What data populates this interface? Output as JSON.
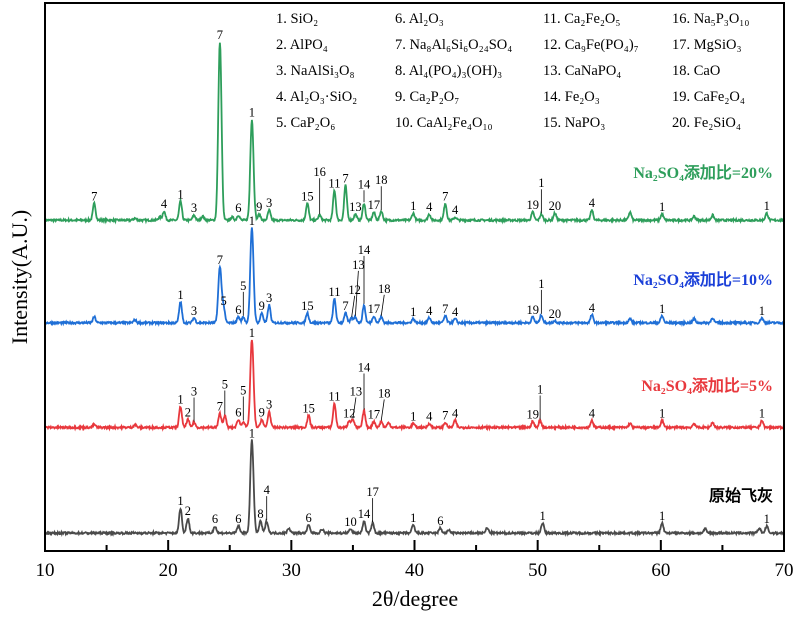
{
  "chart_data": {
    "type": "line",
    "xlabel": "2θ/degree",
    "ylabel": "Intensity(A.U.)",
    "xlim": [
      10,
      70
    ],
    "ylim": [
      0,
      1100
    ],
    "xticks": [
      10,
      20,
      30,
      40,
      50,
      60,
      70
    ],
    "grid": false,
    "y_ticks_shown": false,
    "legend": {
      "placement": "top-right",
      "columns": [
        [
          "1. SiO₂",
          "2. AlPO₄",
          "3. NaAlSi₃O₈",
          "4. Al₂O₃·SiO₂",
          "5. CaP₂O₆"
        ],
        [
          "6. Al₂O₃",
          "7. Na₈Al₆Si₆O₂₄SO₄",
          "8. Al₄(PO₄)₃(OH)₃",
          "9. Ca₂P₂O₇",
          "10. CaAl₂Fe₄O₁₀"
        ],
        [
          "11. Ca₂Fe₂O₅",
          "12. Ca₉Fe(PO₄)₇",
          "13. CaNaPO₄",
          "14. Fe₂O₃",
          "15. NaPO₃"
        ],
        [
          "16. Na₅P₃O₁₀",
          "17. MgSiO₃",
          "18. CaO",
          "19. CaFe₂O₄",
          "20. Fe₂SiO₄"
        ]
      ]
    },
    "series": [
      {
        "name": "Na₂SO₄添加比=20%",
        "color": "#2e9e5b",
        "offset": 664,
        "peaks": [
          [
            14.0,
            34,
            "7"
          ],
          [
            17.3,
            4,
            ""
          ],
          [
            19.3,
            6,
            ""
          ],
          [
            19.66,
            18,
            "4"
          ],
          [
            21.0,
            38,
            "1"
          ],
          [
            22.1,
            10,
            "3"
          ],
          [
            22.8,
            8,
            ""
          ],
          [
            24.2,
            358,
            "7"
          ],
          [
            25.2,
            6,
            ""
          ],
          [
            25.7,
            10,
            "6"
          ],
          [
            26.8,
            202,
            "1"
          ],
          [
            27.4,
            12,
            "9"
          ],
          [
            28.2,
            20,
            "3"
          ],
          [
            31.3,
            34,
            "15"
          ],
          [
            32.3,
            10,
            "16"
          ],
          [
            33.5,
            60,
            "11"
          ],
          [
            34.4,
            70,
            "7"
          ],
          [
            35.2,
            12,
            "13"
          ],
          [
            35.9,
            34,
            "14"
          ],
          [
            36.7,
            16,
            "17"
          ],
          [
            37.3,
            18,
            "18"
          ],
          [
            39.9,
            14,
            "1"
          ],
          [
            41.2,
            12,
            "4"
          ],
          [
            42.5,
            34,
            "7"
          ],
          [
            43.3,
            6,
            "4"
          ],
          [
            49.6,
            16,
            "19"
          ],
          [
            50.3,
            12,
            "1"
          ],
          [
            51.4,
            14,
            "20"
          ],
          [
            54.4,
            20,
            "4"
          ],
          [
            57.5,
            16,
            ""
          ],
          [
            60.1,
            12,
            "1"
          ],
          [
            62.7,
            8,
            ""
          ],
          [
            64.2,
            10,
            ""
          ],
          [
            68.6,
            14,
            "1"
          ]
        ]
      },
      {
        "name": "Na₂SO₄添加比=10%",
        "color": "#1f6fd6",
        "label_color": "#1a3fd8",
        "offset": 458,
        "peaks": [
          [
            14.0,
            12,
            ""
          ],
          [
            17.3,
            6,
            ""
          ],
          [
            21.0,
            42,
            "1"
          ],
          [
            22.1,
            10,
            "3"
          ],
          [
            24.2,
            112,
            "7"
          ],
          [
            24.5,
            30,
            "5"
          ],
          [
            25.7,
            12,
            "6"
          ],
          [
            26.1,
            12,
            "5"
          ],
          [
            26.8,
            190,
            "1"
          ],
          [
            27.6,
            20,
            "9"
          ],
          [
            28.2,
            36,
            "3"
          ],
          [
            31.3,
            20,
            "15"
          ],
          [
            33.5,
            48,
            "11"
          ],
          [
            34.4,
            20,
            "7"
          ],
          [
            34.9,
            10,
            "12",
            true
          ],
          [
            35.2,
            12,
            "13",
            true
          ],
          [
            35.9,
            36,
            "14"
          ],
          [
            36.7,
            14,
            "17"
          ],
          [
            37.3,
            12,
            "18",
            true
          ],
          [
            39.9,
            8,
            "1"
          ],
          [
            41.2,
            10,
            "4"
          ],
          [
            42.5,
            14,
            "7"
          ],
          [
            43.3,
            8,
            "4"
          ],
          [
            49.6,
            12,
            "19"
          ],
          [
            50.3,
            16,
            "1"
          ],
          [
            51.4,
            4,
            "20"
          ],
          [
            54.4,
            16,
            "4"
          ],
          [
            57.5,
            8,
            ""
          ],
          [
            60.1,
            14,
            "1"
          ],
          [
            62.7,
            8,
            ""
          ],
          [
            64.2,
            10,
            ""
          ],
          [
            68.2,
            10,
            "1"
          ]
        ]
      },
      {
        "name": "Na₂SO₄添加比=5%",
        "color": "#e8383d",
        "offset": 248,
        "peaks": [
          [
            14.0,
            6,
            ""
          ],
          [
            17.3,
            6,
            ""
          ],
          [
            21.0,
            42,
            "1"
          ],
          [
            21.6,
            16,
            "2"
          ],
          [
            22.1,
            10,
            "3"
          ],
          [
            24.2,
            28,
            "7"
          ],
          [
            24.6,
            24,
            "5"
          ],
          [
            25.7,
            16,
            "6"
          ],
          [
            26.1,
            12,
            "5"
          ],
          [
            26.8,
            176,
            "1"
          ],
          [
            27.6,
            16,
            "9"
          ],
          [
            28.2,
            32,
            "3"
          ],
          [
            31.4,
            24,
            "15"
          ],
          [
            33.5,
            48,
            "11"
          ],
          [
            34.7,
            14,
            "12"
          ],
          [
            35.0,
            16,
            "13",
            true
          ],
          [
            35.9,
            34,
            "14"
          ],
          [
            36.7,
            12,
            "17"
          ],
          [
            37.3,
            12,
            "18",
            true
          ],
          [
            37.9,
            10,
            ""
          ],
          [
            39.9,
            8,
            "1"
          ],
          [
            41.2,
            8,
            "4"
          ],
          [
            42.5,
            10,
            "7"
          ],
          [
            43.3,
            14,
            "4"
          ],
          [
            49.6,
            12,
            "19"
          ],
          [
            50.2,
            14,
            "1"
          ],
          [
            54.4,
            14,
            "4"
          ],
          [
            57.5,
            8,
            ""
          ],
          [
            60.1,
            14,
            "1"
          ],
          [
            62.7,
            8,
            ""
          ],
          [
            64.2,
            10,
            ""
          ],
          [
            68.2,
            14,
            "1"
          ]
        ]
      },
      {
        "name": "原始飞灰",
        "color": "#4a4a4a",
        "label_color": "#000000",
        "offset": 36,
        "peaks": [
          [
            21.0,
            50,
            "1"
          ],
          [
            21.6,
            30,
            "2"
          ],
          [
            23.8,
            14,
            "6"
          ],
          [
            25.7,
            14,
            "6"
          ],
          [
            26.8,
            186,
            "1"
          ],
          [
            27.5,
            24,
            "8"
          ],
          [
            28.0,
            24,
            "4"
          ],
          [
            29.8,
            10,
            ""
          ],
          [
            31.4,
            16,
            "6"
          ],
          [
            32.5,
            8,
            ""
          ],
          [
            34.8,
            8,
            "10"
          ],
          [
            35.9,
            24,
            "14"
          ],
          [
            36.6,
            20,
            "17"
          ],
          [
            39.9,
            16,
            "1"
          ],
          [
            42.1,
            10,
            "6"
          ],
          [
            42.8,
            6,
            ""
          ],
          [
            45.9,
            10,
            ""
          ],
          [
            50.4,
            20,
            "1"
          ],
          [
            60.1,
            20,
            "1"
          ],
          [
            63.6,
            8,
            ""
          ],
          [
            68.0,
            10,
            ""
          ],
          [
            68.6,
            14,
            "1"
          ]
        ]
      }
    ]
  }
}
